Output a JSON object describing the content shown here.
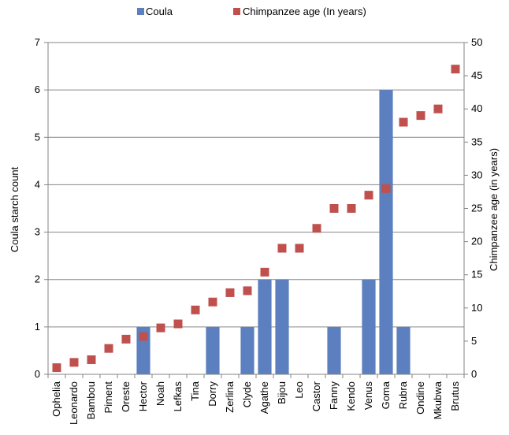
{
  "chart_data": {
    "type": "bar+scatter",
    "categories": [
      "Ophelia",
      "Leonardo",
      "Bambou",
      "Piment",
      "Oreste",
      "Hector",
      "Noah",
      "Lefkas",
      "Tina",
      "Dorry",
      "Zerlina",
      "Clyde",
      "Agathe",
      "Bijou",
      "Leo",
      "Castor",
      "Fanny",
      "Kendo",
      "Venus",
      "Goma",
      "Rubra",
      "Ondine",
      "Mkubwa",
      "Brutus"
    ],
    "series": [
      {
        "name": "Coula",
        "type": "bar",
        "axis": "left",
        "color": "#5b7fbf",
        "values": [
          0,
          0,
          0,
          0,
          0,
          1,
          0,
          0,
          0,
          1,
          0,
          1,
          2,
          2,
          0,
          0,
          1,
          0,
          2,
          6,
          1,
          0,
          0,
          0
        ]
      },
      {
        "name": "Chimpanzee age (In years)",
        "type": "scatter",
        "axis": "right",
        "color": "#c0504d",
        "marker": "square",
        "values": [
          1,
          1.8,
          2.2,
          3.9,
          5.3,
          5.7,
          7,
          7.6,
          9.7,
          10.9,
          12.3,
          12.6,
          15.4,
          19,
          19,
          22,
          25,
          25,
          27,
          28,
          38,
          39,
          40,
          46
        ]
      }
    ],
    "ylabel": "Coula starch count",
    "y2label": "Chimpanzee age (in years)",
    "ylim": [
      0,
      7
    ],
    "y2lim": [
      0,
      50
    ],
    "yticks": [
      0,
      1,
      2,
      3,
      4,
      5,
      6,
      7
    ],
    "y2ticks": [
      0,
      5,
      10,
      15,
      20,
      25,
      30,
      35,
      40,
      45,
      50
    ],
    "legend_position": "top",
    "grid": true
  }
}
